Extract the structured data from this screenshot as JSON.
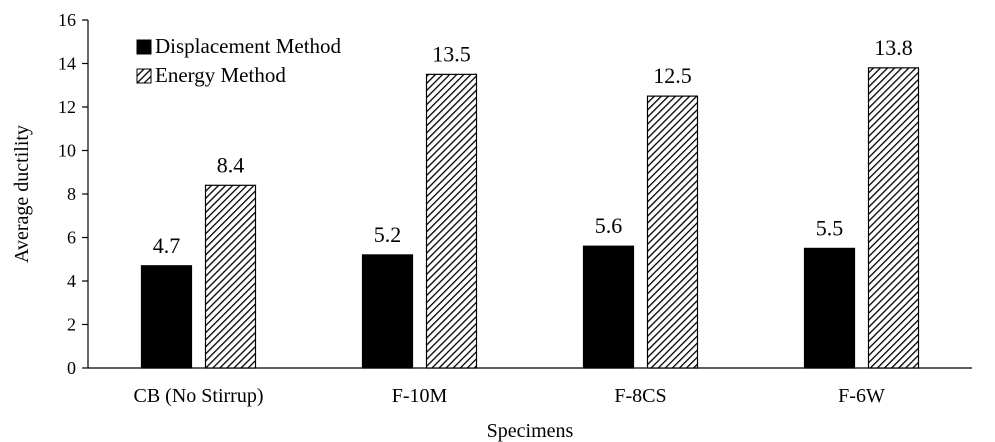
{
  "chart_data": {
    "type": "bar",
    "categories": [
      "CB (No Stirrup)",
      "F-10M",
      "F-8CS",
      "F-6W"
    ],
    "series": [
      {
        "name": "Displacement Method",
        "values": [
          4.7,
          5.2,
          5.6,
          5.5
        ],
        "labels": [
          "4.7",
          "5.2",
          "5.6",
          "5.5"
        ],
        "fill": "solid",
        "color": "#000000"
      },
      {
        "name": "Energy Method",
        "values": [
          8.4,
          13.5,
          12.5,
          13.8
        ],
        "labels": [
          "8.4",
          "13.5",
          "12.5",
          "13.8"
        ],
        "fill": "diagonal-hatch",
        "color": "#000000"
      }
    ],
    "xlabel": "Specimens",
    "ylabel": "Average ductility",
    "ylim": [
      0,
      16
    ],
    "yticks": [
      0,
      2,
      4,
      6,
      8,
      10,
      12,
      14,
      16
    ],
    "grid": false,
    "legend_position": "top-left"
  }
}
